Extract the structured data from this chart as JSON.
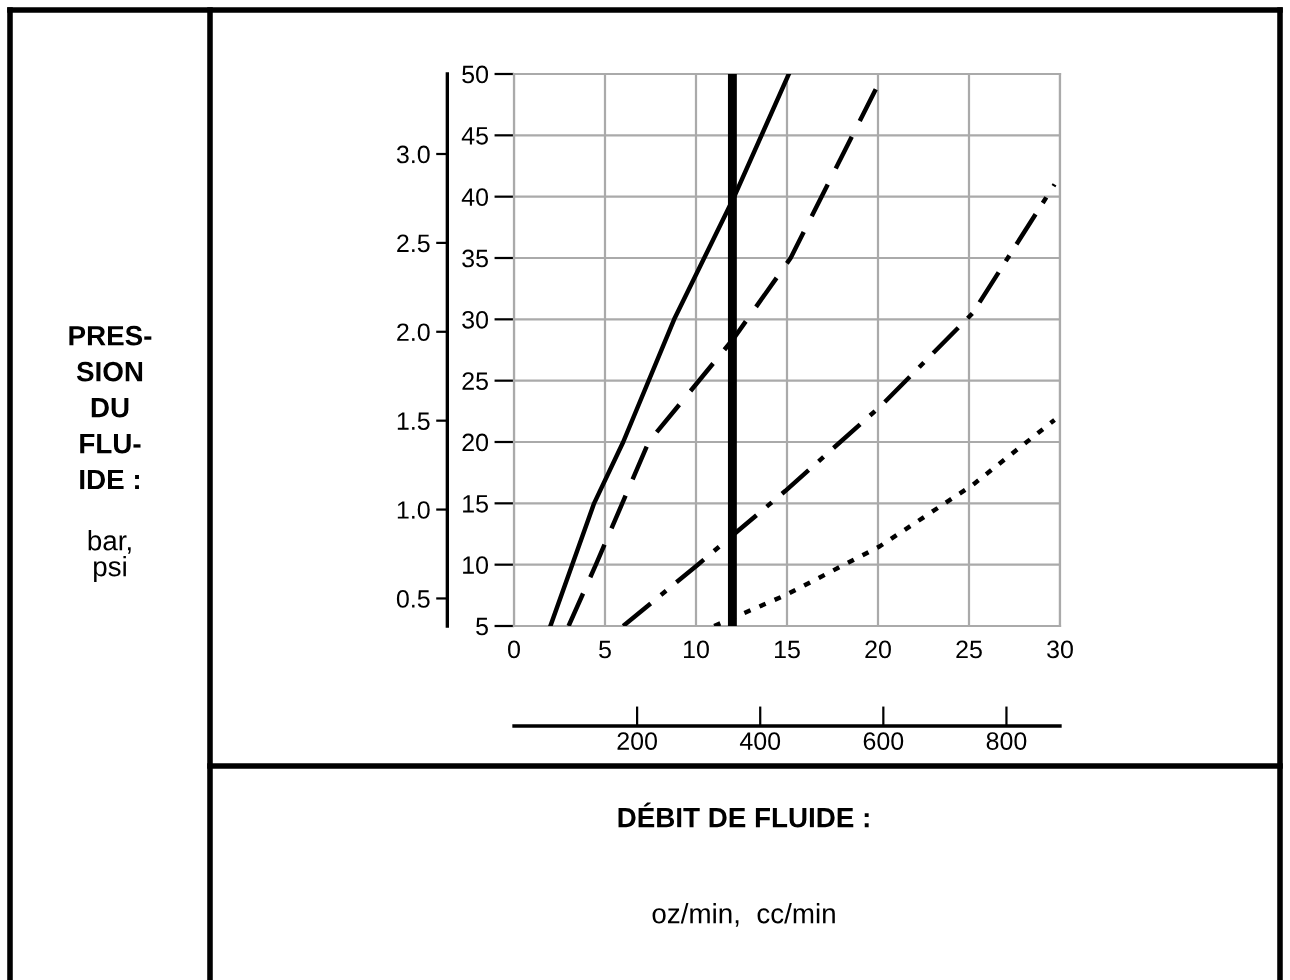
{
  "chart_data": {
    "type": "line",
    "xlabel": "DÉBIT DE FLUIDE :",
    "annotations": [
      "PRES-\nSION\nDU\nFLU-\nIDE :",
      "bar,\npsi",
      "oz/min,  cc/min"
    ],
    "xlim": [
      0,
      30
    ],
    "xticks": [
      0,
      5,
      10,
      15,
      20,
      25,
      30
    ],
    "ylim": [
      5,
      50
    ],
    "yticks": [
      5,
      10,
      15,
      20,
      25,
      30,
      35,
      40,
      45,
      50
    ],
    "x2lim": [
      0,
      887
    ],
    "x2ticks": [
      200,
      400,
      600,
      800
    ],
    "y2lim": [
      0.345,
      3.45
    ],
    "y2ticks": [
      0.5,
      {
        "value": 1,
        "label": "1.0"
      },
      1.5,
      {
        "value": 2,
        "label": "2.0"
      },
      2.5,
      {
        "value": 3,
        "label": "3.0"
      }
    ],
    "grid": true,
    "ref_lines": [
      {
        "axis": "x",
        "value": 12,
        "color": "#000000",
        "line_style": "solid"
      }
    ],
    "series": [
      {
        "color": "#000000",
        "line_style": "solid",
        "x": [
          2.0,
          4.4,
          6.0,
          8.8,
          12.1,
          15.1
        ],
        "values": [
          5,
          15,
          20,
          30,
          40,
          50
        ]
      },
      {
        "color": "#000000",
        "line_style": "dashed",
        "x": [
          3.0,
          4.5,
          7.4,
          12.1,
          15.2,
          20.3
        ],
        "values": [
          5,
          10,
          20,
          28.5,
          35,
          50
        ]
      },
      {
        "color": "#000000",
        "line_style": "dashdot",
        "x": [
          6.0,
          10.1,
          12.1,
          14.9,
          20.2,
          25.2,
          29.7
        ],
        "values": [
          5,
          10,
          12.5,
          16,
          23,
          30.5,
          41
        ]
      },
      {
        "color": "#000000",
        "line_style": "dotted",
        "x": [
          11.0,
          14.9,
          20.1,
          25.2,
          29.7
        ],
        "values": [
          5,
          7.5,
          11.5,
          16.5,
          21.8
        ]
      }
    ]
  }
}
